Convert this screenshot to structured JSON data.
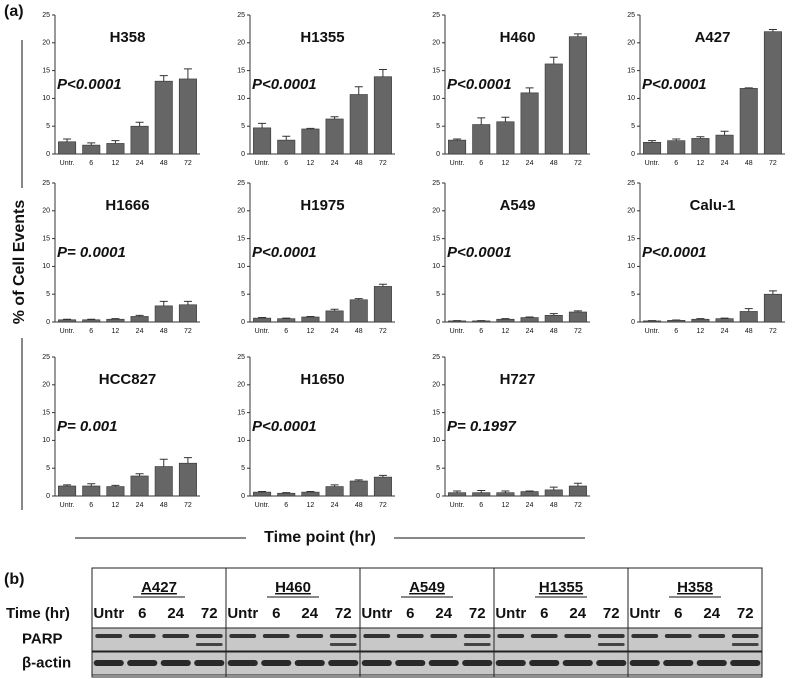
{
  "figure": {
    "panel_a": "(a)",
    "y_label": "% of Cell Events",
    "x_label": "Time point (hr)"
  },
  "chart_data": [
    {
      "type": "bar",
      "title": "H358",
      "annotation": "P<0.0001",
      "categories": [
        "Untr.",
        "6",
        "12",
        "24",
        "48",
        "72"
      ],
      "values": [
        2.2,
        1.6,
        1.9,
        5.0,
        13.1,
        13.5
      ],
      "errors": [
        0.5,
        0.4,
        0.5,
        0.7,
        1.0,
        1.8
      ],
      "color": "#666666",
      "ylim": [
        0,
        25
      ],
      "yticks": [
        0,
        5,
        10,
        15,
        20,
        25
      ]
    },
    {
      "type": "bar",
      "title": "H1355",
      "annotation": "P<0.0001",
      "categories": [
        "Untr.",
        "6",
        "12",
        "24",
        "48",
        "72"
      ],
      "values": [
        4.7,
        2.5,
        4.5,
        6.3,
        10.7,
        13.9
      ],
      "errors": [
        0.8,
        0.7,
        0.1,
        0.4,
        1.4,
        1.3
      ],
      "color": "#666666",
      "ylim": [
        0,
        25
      ],
      "yticks": [
        0,
        5,
        10,
        15,
        20,
        25
      ]
    },
    {
      "type": "bar",
      "title": "H460",
      "annotation": "P<0.0001",
      "categories": [
        "Untr.",
        "6",
        "12",
        "24",
        "48",
        "72"
      ],
      "values": [
        2.5,
        5.3,
        5.8,
        11.0,
        16.2,
        21.1
      ],
      "errors": [
        0.2,
        1.2,
        0.8,
        0.9,
        1.2,
        0.5
      ],
      "color": "#666666",
      "ylim": [
        0,
        25
      ],
      "yticks": [
        0,
        5,
        10,
        15,
        20,
        25
      ]
    },
    {
      "type": "bar",
      "title": "A427",
      "annotation": "P<0.0001",
      "categories": [
        "Untr.",
        "6",
        "12",
        "24",
        "48",
        "72"
      ],
      "values": [
        2.1,
        2.4,
        2.8,
        3.4,
        11.8,
        22.0
      ],
      "errors": [
        0.3,
        0.3,
        0.3,
        0.7,
        0.1,
        0.4
      ],
      "color": "#666666",
      "ylim": [
        0,
        25
      ],
      "yticks": [
        0,
        5,
        10,
        15,
        20,
        25
      ]
    },
    {
      "type": "bar",
      "title": "H1666",
      "annotation": "P= 0.0001",
      "categories": [
        "Untr.",
        "6",
        "12",
        "24",
        "48",
        "72"
      ],
      "values": [
        0.4,
        0.4,
        0.5,
        1.0,
        2.9,
        3.1
      ],
      "errors": [
        0.1,
        0.1,
        0.1,
        0.2,
        0.8,
        0.6
      ],
      "color": "#666666",
      "ylim": [
        0,
        25
      ],
      "yticks": [
        0,
        5,
        10,
        15,
        20,
        25
      ]
    },
    {
      "type": "bar",
      "title": "H1975",
      "annotation": "P<0.0001",
      "categories": [
        "Untr.",
        "6",
        "12",
        "24",
        "48",
        "72"
      ],
      "values": [
        0.7,
        0.6,
        0.9,
        2.0,
        4.0,
        6.4
      ],
      "errors": [
        0.1,
        0.1,
        0.1,
        0.3,
        0.2,
        0.4
      ],
      "color": "#666666",
      "ylim": [
        0,
        25
      ],
      "yticks": [
        0,
        5,
        10,
        15,
        20,
        25
      ]
    },
    {
      "type": "bar",
      "title": "A549",
      "annotation": "P<0.0001",
      "categories": [
        "Untr.",
        "6",
        "12",
        "24",
        "48",
        "72"
      ],
      "values": [
        0.2,
        0.2,
        0.5,
        0.8,
        1.2,
        1.8
      ],
      "errors": [
        0.05,
        0.05,
        0.1,
        0.1,
        0.3,
        0.2
      ],
      "color": "#666666",
      "ylim": [
        0,
        25
      ],
      "yticks": [
        0,
        5,
        10,
        15,
        20,
        25
      ]
    },
    {
      "type": "bar",
      "title": "Calu-1",
      "annotation": "P<0.0001",
      "categories": [
        "Untr.",
        "6",
        "12",
        "24",
        "48",
        "72"
      ],
      "values": [
        0.2,
        0.3,
        0.5,
        0.6,
        1.9,
        5.0
      ],
      "errors": [
        0.05,
        0.05,
        0.1,
        0.1,
        0.5,
        0.6
      ],
      "color": "#666666",
      "ylim": [
        0,
        25
      ],
      "yticks": [
        0,
        5,
        10,
        15,
        20,
        25
      ]
    },
    {
      "type": "bar",
      "title": "HCC827",
      "annotation": "P= 0.001",
      "categories": [
        "Untr.",
        "6",
        "12",
        "24",
        "48",
        "72"
      ],
      "values": [
        1.8,
        1.8,
        1.7,
        3.6,
        5.3,
        5.9
      ],
      "errors": [
        0.2,
        0.4,
        0.2,
        0.4,
        1.3,
        1.0
      ],
      "color": "#666666",
      "ylim": [
        0,
        25
      ],
      "yticks": [
        0,
        5,
        10,
        15,
        20,
        25
      ]
    },
    {
      "type": "bar",
      "title": "H1650",
      "annotation": "P<0.0001",
      "categories": [
        "Untr.",
        "6",
        "12",
        "24",
        "48",
        "72"
      ],
      "values": [
        0.7,
        0.5,
        0.7,
        1.7,
        2.7,
        3.4
      ],
      "errors": [
        0.1,
        0.1,
        0.1,
        0.3,
        0.2,
        0.3
      ],
      "color": "#666666",
      "ylim": [
        0,
        25
      ],
      "yticks": [
        0,
        5,
        10,
        15,
        20,
        25
      ]
    },
    {
      "type": "bar",
      "title": "H727",
      "annotation": "P= 0.1997",
      "categories": [
        "Untr.",
        "6",
        "12",
        "24",
        "48",
        "72"
      ],
      "values": [
        0.6,
        0.6,
        0.6,
        0.8,
        1.1,
        1.8
      ],
      "errors": [
        0.3,
        0.4,
        0.3,
        0.1,
        0.5,
        0.5
      ],
      "color": "#666666",
      "ylim": [
        0,
        25
      ],
      "yticks": [
        0,
        5,
        10,
        15,
        20,
        25
      ]
    }
  ],
  "blot": {
    "panel_b": "(b)",
    "time_label": "Time (hr)",
    "rows": [
      "PARP",
      "β-actin"
    ],
    "groups": [
      {
        "name": "A427",
        "times": [
          "Untr",
          "6",
          "24",
          "72"
        ]
      },
      {
        "name": "H460",
        "times": [
          "Untr",
          "6",
          "24",
          "72"
        ]
      },
      {
        "name": "A549",
        "times": [
          "Untr",
          "6",
          "24",
          "72"
        ]
      },
      {
        "name": "H1355",
        "times": [
          "Untr",
          "6",
          "24",
          "72"
        ]
      },
      {
        "name": "H358",
        "times": [
          "Untr",
          "6",
          "24",
          "72"
        ]
      }
    ]
  }
}
